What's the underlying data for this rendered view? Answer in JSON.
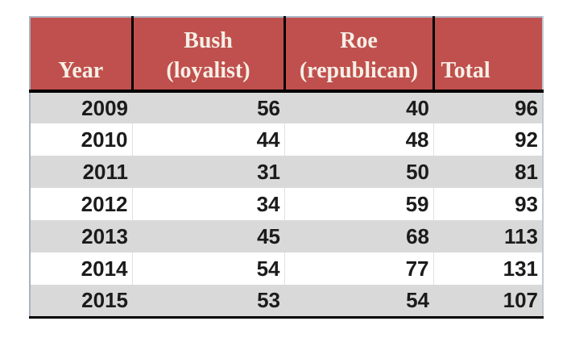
{
  "table": {
    "columns": [
      {
        "id": "year",
        "label": "Year",
        "align": "center"
      },
      {
        "id": "bush",
        "label": "Bush\n(loyalist)",
        "align": "center"
      },
      {
        "id": "roe",
        "label": "Roe\n(republican)",
        "align": "center"
      },
      {
        "id": "total",
        "label": "Total",
        "align": "left"
      }
    ],
    "rows": [
      [
        "2009",
        "56",
        "40",
        "96"
      ],
      [
        "2010",
        "44",
        "48",
        "92"
      ],
      [
        "2011",
        "31",
        "50",
        "81"
      ],
      [
        "2012",
        "34",
        "59",
        "93"
      ],
      [
        "2013",
        "45",
        "68",
        "113"
      ],
      [
        "2014",
        "54",
        "77",
        "131"
      ],
      [
        "2015",
        "53",
        "54",
        "107"
      ]
    ]
  },
  "colors": {
    "header_bg": "#c0504d",
    "header_text": "#f5efe6",
    "row_alt_bg": "#d9d9d9",
    "row_bg": "#ffffff",
    "data_text": "#1b1b1b",
    "heavy_border": "#000000",
    "outer_border": "#a7b3c1"
  },
  "chart_data": {
    "type": "table",
    "title": "",
    "xlabel": "Year",
    "categories": [
      "2009",
      "2010",
      "2011",
      "2012",
      "2013",
      "2014",
      "2015"
    ],
    "series": [
      {
        "name": "Bush (loyalist)",
        "values": [
          56,
          44,
          31,
          34,
          45,
          54,
          53
        ]
      },
      {
        "name": "Roe (republican)",
        "values": [
          40,
          48,
          50,
          59,
          68,
          77,
          54
        ]
      },
      {
        "name": "Total",
        "values": [
          96,
          92,
          81,
          93,
          113,
          131,
          107
        ]
      }
    ]
  }
}
